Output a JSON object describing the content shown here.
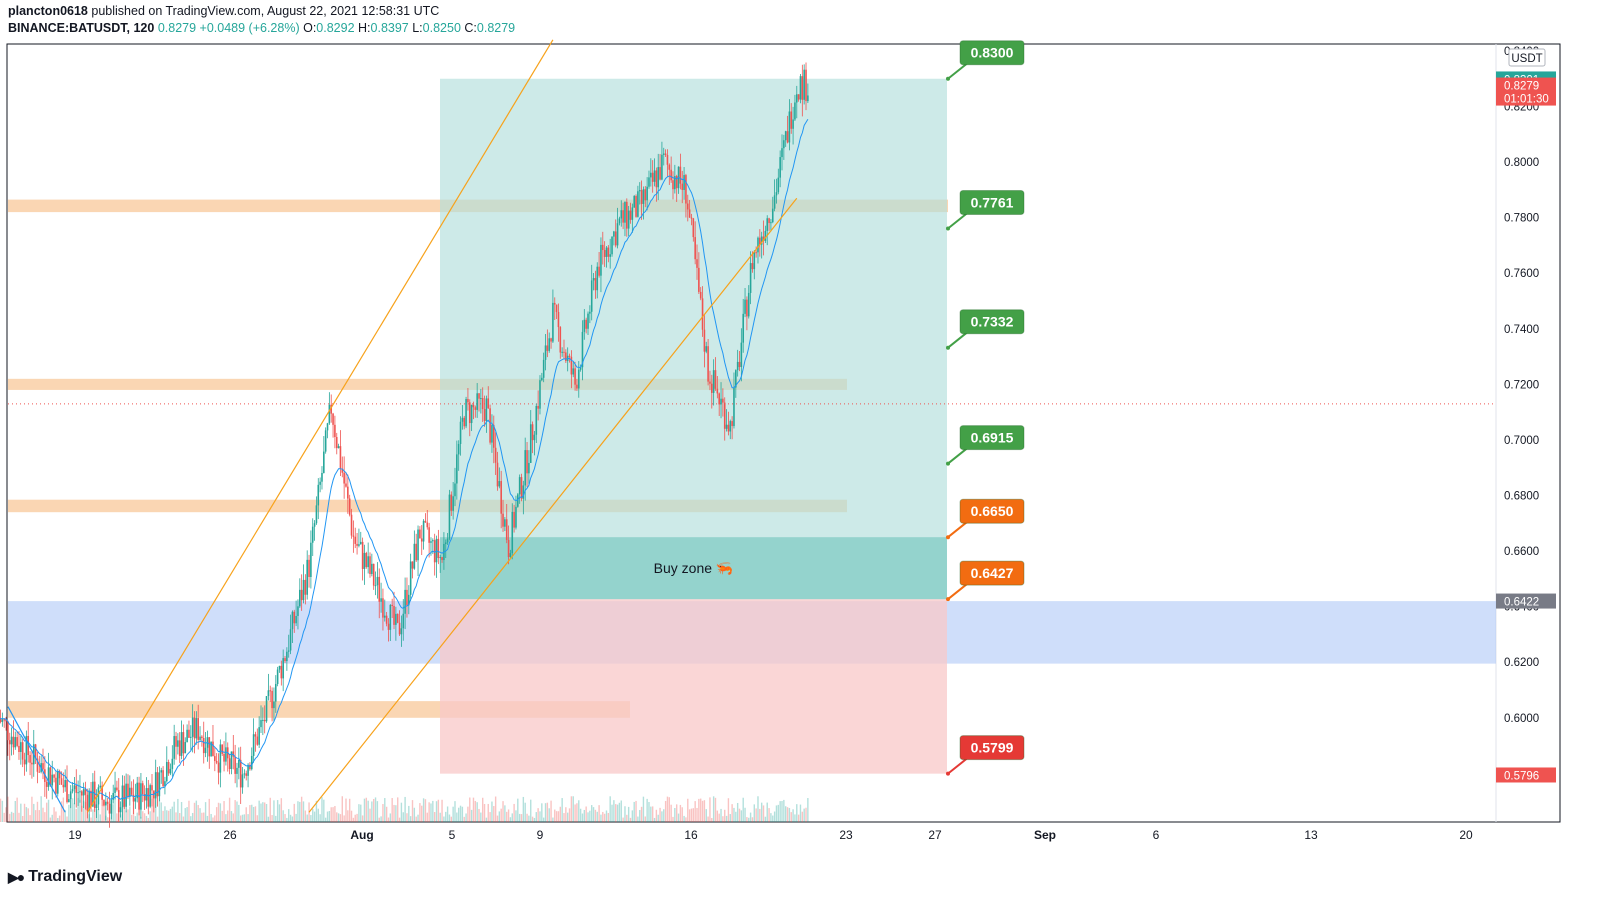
{
  "header": {
    "author": "plancton0618",
    "published_text": "published on TradingView.com, August 22, 2021 12:58:31 UTC",
    "symbol": "BINANCE:BATUSDT, 120",
    "last": "0.8279",
    "change": "+0.0489 (+6.28%)",
    "o_label": "O:",
    "o": "0.8292",
    "h_label": "H:",
    "h": "0.8397",
    "l_label": "L:",
    "l": "0.8250",
    "c_label": "C:",
    "c": "0.8279"
  },
  "branding": {
    "logo_text": "TradingView",
    "icon": "tradingview-logo-icon"
  },
  "colors": {
    "up": "#26a69a",
    "down": "#ef5350",
    "ema": "#2196f3",
    "channel": "#f7a21b",
    "zone_orange": "#f8c89a",
    "target_box": "#b2dfdb",
    "buy_zone": "#80cbc4",
    "stop_box": "#f8c8c8",
    "support_blue": "#a8c2f5",
    "label_green": "#43a047",
    "label_orange": "#f26c11",
    "label_red": "#e53935"
  },
  "chart_data": {
    "type": "candlestick",
    "currency": "USDT",
    "ylim": [
      0.5625,
      0.8425
    ],
    "y_ticks": [
      "0.8400",
      "0.8200",
      "0.8000",
      "0.7800",
      "0.7600",
      "0.7400",
      "0.7200",
      "0.7000",
      "0.6800",
      "0.6600",
      "0.6400",
      "0.6200",
      "0.6000",
      "0.5800"
    ],
    "x_ticks": [
      "19",
      "26",
      "Aug",
      "5",
      "9",
      "16",
      "23",
      "27",
      "Sep",
      "6",
      "13",
      "20"
    ],
    "x_ticks_bold": [
      "Aug",
      "Sep"
    ],
    "price_tags": [
      {
        "value": 0.8301,
        "text": "0.8301",
        "color": "#26a69a"
      },
      {
        "value": 0.8279,
        "text": "0.8279",
        "sub": "01:01:30",
        "color": "#ef5350"
      },
      {
        "value": 0.6422,
        "text": "0.6422",
        "color": "#787b86"
      },
      {
        "value": 0.5796,
        "text": "0.5796",
        "color": "#ef5350"
      }
    ],
    "reference_line": 0.713,
    "zones": [
      {
        "y_top": 0.7865,
        "y_bottom": 0.782,
        "x_from": "19",
        "x_to": "23 end"
      },
      {
        "y_top": 0.722,
        "y_bottom": 0.718,
        "x_from": "19",
        "x_to": "23"
      },
      {
        "y_top": 0.6785,
        "y_bottom": 0.674,
        "x_from": "19",
        "x_to": "23"
      },
      {
        "y_top": 0.606,
        "y_bottom": 0.6,
        "x_from": "19",
        "x_to": "16"
      }
    ],
    "support_zone": [
      0.642,
      0.6195
    ],
    "buy_zone": {
      "top": 0.665,
      "bottom": 0.6427,
      "label": "Buy zone",
      "icon": "shrimp-emoji-icon"
    },
    "targets": [
      {
        "value": 0.83,
        "label": "0.8300",
        "kind": "target"
      },
      {
        "value": 0.7761,
        "label": "0.7761",
        "kind": "target"
      },
      {
        "value": 0.7332,
        "label": "0.7332",
        "kind": "target"
      },
      {
        "value": 0.6915,
        "label": "0.6915",
        "kind": "target"
      },
      {
        "value": 0.665,
        "label": "0.6650",
        "kind": "entry"
      },
      {
        "value": 0.6427,
        "label": "0.6427",
        "kind": "entry"
      },
      {
        "value": 0.5799,
        "label": "0.5799",
        "kind": "stop"
      }
    ],
    "channel_lines": [
      {
        "from": [
          "21 Jul",
          0.566
        ],
        "to": [
          "11 Aug",
          0.844
        ]
      },
      {
        "from": [
          "31 Jul",
          0.566
        ],
        "to": [
          "22 Aug",
          0.787
        ]
      }
    ],
    "downtrend_line": {
      "from": [
        "17 Jul",
        0.604
      ],
      "to": [
        "20 Jul",
        0.566
      ]
    },
    "path_points": [
      [
        "17 Jul",
        0.6
      ],
      [
        "18 Jul",
        0.59
      ],
      [
        "19 Jul",
        0.582
      ],
      [
        "20 Jul",
        0.575
      ],
      [
        "21 Jul",
        0.572
      ],
      [
        "22 Jul",
        0.57
      ],
      [
        "23 Jul",
        0.571
      ],
      [
        "24 Jul",
        0.575
      ],
      [
        "25 Jul",
        0.59
      ],
      [
        "26 Jul",
        0.596
      ],
      [
        "27 Jul",
        0.585
      ],
      [
        "28 Jul",
        0.58
      ],
      [
        "29 Jul",
        0.6
      ],
      [
        "30 Jul",
        0.625
      ],
      [
        "31 Jul",
        0.655
      ],
      [
        "1 Aug",
        0.712
      ],
      [
        "2 Aug",
        0.665
      ],
      [
        "3 Aug",
        0.648
      ],
      [
        "4 Aug",
        0.63
      ],
      [
        "5 Aug",
        0.667
      ],
      [
        "6 Aug",
        0.657
      ],
      [
        "7 Aug",
        0.71
      ],
      [
        "8 Aug",
        0.712
      ],
      [
        "9 Aug",
        0.662
      ],
      [
        "10 Aug",
        0.7
      ],
      [
        "11 Aug",
        0.745
      ],
      [
        "12 Aug",
        0.72
      ],
      [
        "13 Aug",
        0.762
      ],
      [
        "14 Aug",
        0.778
      ],
      [
        "15 Aug",
        0.785
      ],
      [
        "16 Aug",
        0.8
      ],
      [
        "17 Aug",
        0.79
      ],
      [
        "18 Aug",
        0.725
      ],
      [
        "19 Aug",
        0.705
      ],
      [
        "20 Aug",
        0.765
      ],
      [
        "21 Aug",
        0.788
      ],
      [
        "22 Aug",
        0.8279
      ]
    ]
  }
}
